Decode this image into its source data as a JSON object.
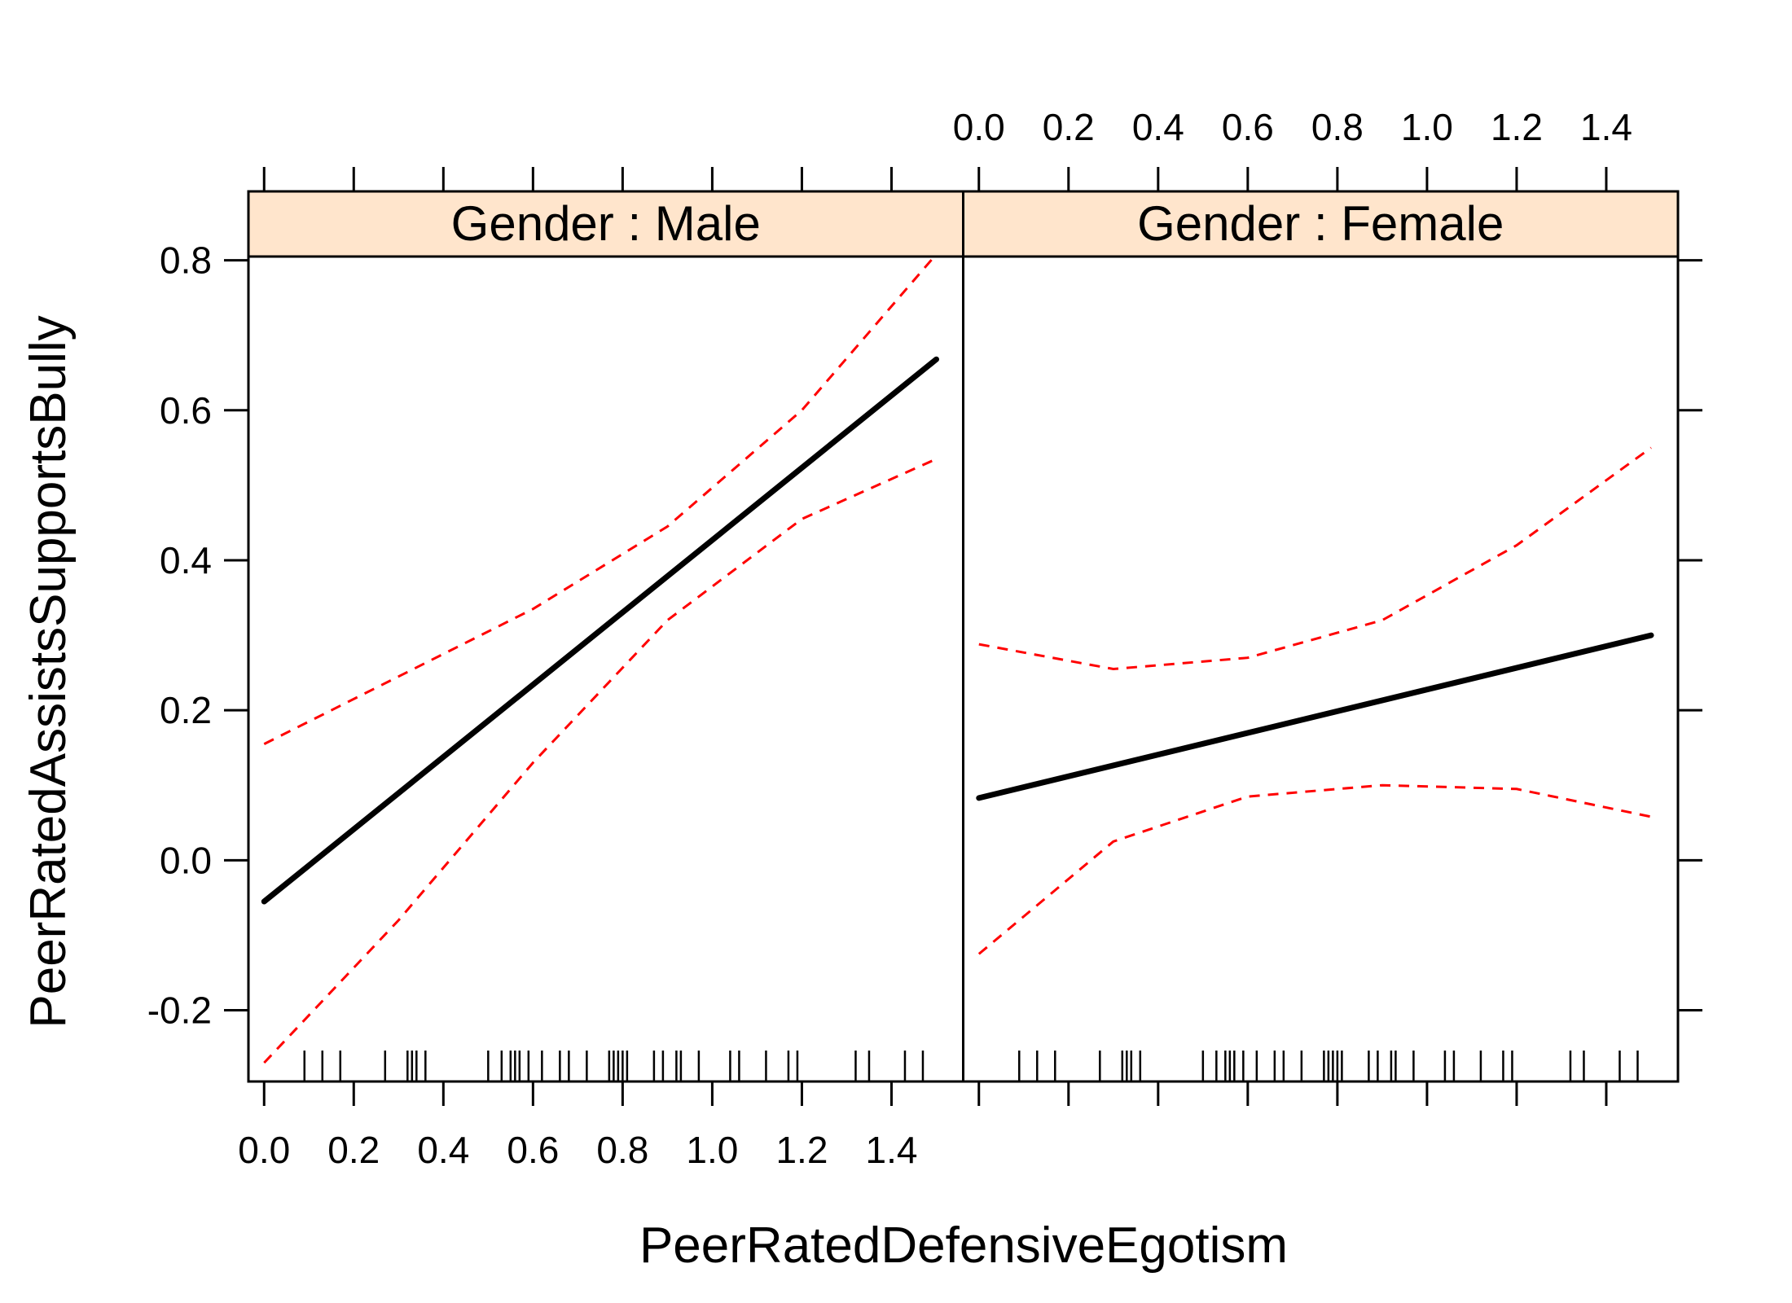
{
  "chart_data": {
    "type": "line",
    "xlabel": "PeerRatedDefensiveEgotism",
    "ylabel": "PeerRatedAssistsSupportsBully",
    "xlim": [
      -0.035,
      1.56
    ],
    "ylim": [
      -0.295,
      0.805
    ],
    "x_ticks": [
      "0.0",
      "0.2",
      "0.4",
      "0.6",
      "0.8",
      "1.0",
      "1.2",
      "1.4"
    ],
    "y_ticks": [
      "-0.2",
      "0.0",
      "0.2",
      "0.4",
      "0.6",
      "0.8"
    ],
    "grid": false,
    "colors": {
      "fit": "#000000",
      "band": "#ff0000",
      "strip": "#ffe5cc"
    },
    "panels": [
      {
        "strip_label": "Gender : Male",
        "series": [
          {
            "style": "solid",
            "points": [
              [
                0.0,
                -0.055
              ],
              [
                1.5,
                0.668
              ]
            ]
          },
          {
            "style": "dashed",
            "points": [
              [
                0.0,
                0.155
              ],
              [
                0.3,
                0.245
              ],
              [
                0.6,
                0.335
              ],
              [
                0.9,
                0.445
              ],
              [
                1.2,
                0.6
              ],
              [
                1.5,
                0.808
              ]
            ]
          },
          {
            "style": "dashed",
            "points": [
              [
                0.0,
                -0.27
              ],
              [
                0.3,
                -0.08
              ],
              [
                0.6,
                0.13
              ],
              [
                0.9,
                0.32
              ],
              [
                1.2,
                0.455
              ],
              [
                1.5,
                0.535
              ]
            ]
          }
        ],
        "rug": [
          0.09,
          0.13,
          0.17,
          0.27,
          0.32,
          0.33,
          0.34,
          0.36,
          0.5,
          0.53,
          0.55,
          0.56,
          0.57,
          0.59,
          0.62,
          0.66,
          0.68,
          0.72,
          0.77,
          0.78,
          0.79,
          0.8,
          0.81,
          0.87,
          0.89,
          0.92,
          0.93,
          0.97,
          1.04,
          1.06,
          1.12,
          1.17,
          1.19,
          1.32,
          1.35,
          1.43,
          1.47
        ]
      },
      {
        "strip_label": "Gender : Female",
        "series": [
          {
            "style": "solid",
            "points": [
              [
                0.0,
                0.083
              ],
              [
                1.5,
                0.3
              ]
            ]
          },
          {
            "style": "dashed",
            "points": [
              [
                0.0,
                0.288
              ],
              [
                0.3,
                0.255
              ],
              [
                0.6,
                0.27
              ],
              [
                0.9,
                0.32
              ],
              [
                1.2,
                0.42
              ],
              [
                1.5,
                0.55
              ]
            ]
          },
          {
            "style": "dashed",
            "points": [
              [
                0.0,
                -0.125
              ],
              [
                0.3,
                0.025
              ],
              [
                0.6,
                0.085
              ],
              [
                0.9,
                0.1
              ],
              [
                1.2,
                0.095
              ],
              [
                1.5,
                0.058
              ]
            ]
          }
        ],
        "rug": [
          0.09,
          0.13,
          0.17,
          0.27,
          0.32,
          0.33,
          0.34,
          0.36,
          0.5,
          0.53,
          0.55,
          0.56,
          0.57,
          0.59,
          0.62,
          0.66,
          0.68,
          0.72,
          0.77,
          0.78,
          0.79,
          0.8,
          0.81,
          0.87,
          0.89,
          0.92,
          0.93,
          0.97,
          1.04,
          1.06,
          1.12,
          1.17,
          1.19,
          1.32,
          1.35,
          1.43,
          1.47
        ]
      }
    ]
  }
}
